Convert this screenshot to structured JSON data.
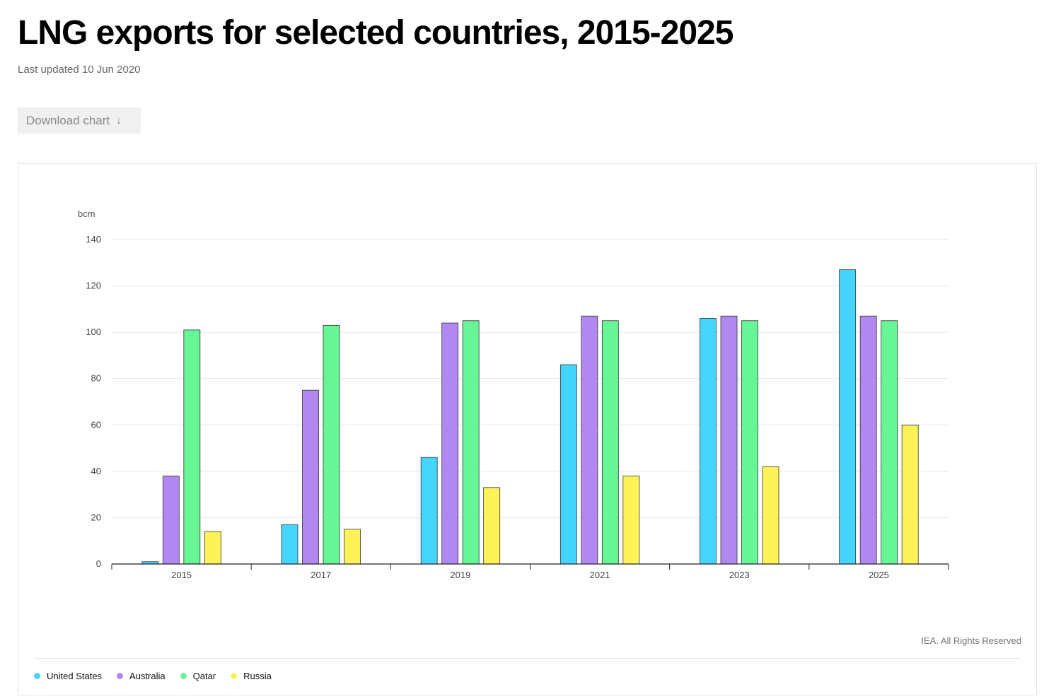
{
  "header": {
    "title": "LNG exports for selected countries, 2015-2025",
    "updated": "Last updated 10 Jun 2020",
    "download_label": "Download chart",
    "download_icon": "arrow-down-icon"
  },
  "footer": {
    "credit": "IEA. All Rights Reserved"
  },
  "chart_data": {
    "type": "bar",
    "title": "LNG exports for selected countries, 2015-2025",
    "ylabel": "bcm",
    "xlabel": "",
    "categories": [
      "2015",
      "2017",
      "2019",
      "2021",
      "2023",
      "2025"
    ],
    "ylim": [
      0,
      140
    ],
    "yticks": [
      0,
      20,
      40,
      60,
      80,
      100,
      120,
      140
    ],
    "grid": true,
    "legend_position": "bottom-left",
    "series": [
      {
        "name": "United States",
        "color": "#44d4fc",
        "values": [
          1,
          17,
          46,
          86,
          106,
          127
        ]
      },
      {
        "name": "Australia",
        "color": "#b088f0",
        "values": [
          38,
          75,
          104,
          107,
          107,
          107
        ]
      },
      {
        "name": "Qatar",
        "color": "#68f596",
        "values": [
          101,
          103,
          105,
          105,
          105,
          105
        ]
      },
      {
        "name": "Russia",
        "color": "#fdf359",
        "values": [
          14,
          15,
          33,
          38,
          42,
          60
        ]
      }
    ]
  }
}
